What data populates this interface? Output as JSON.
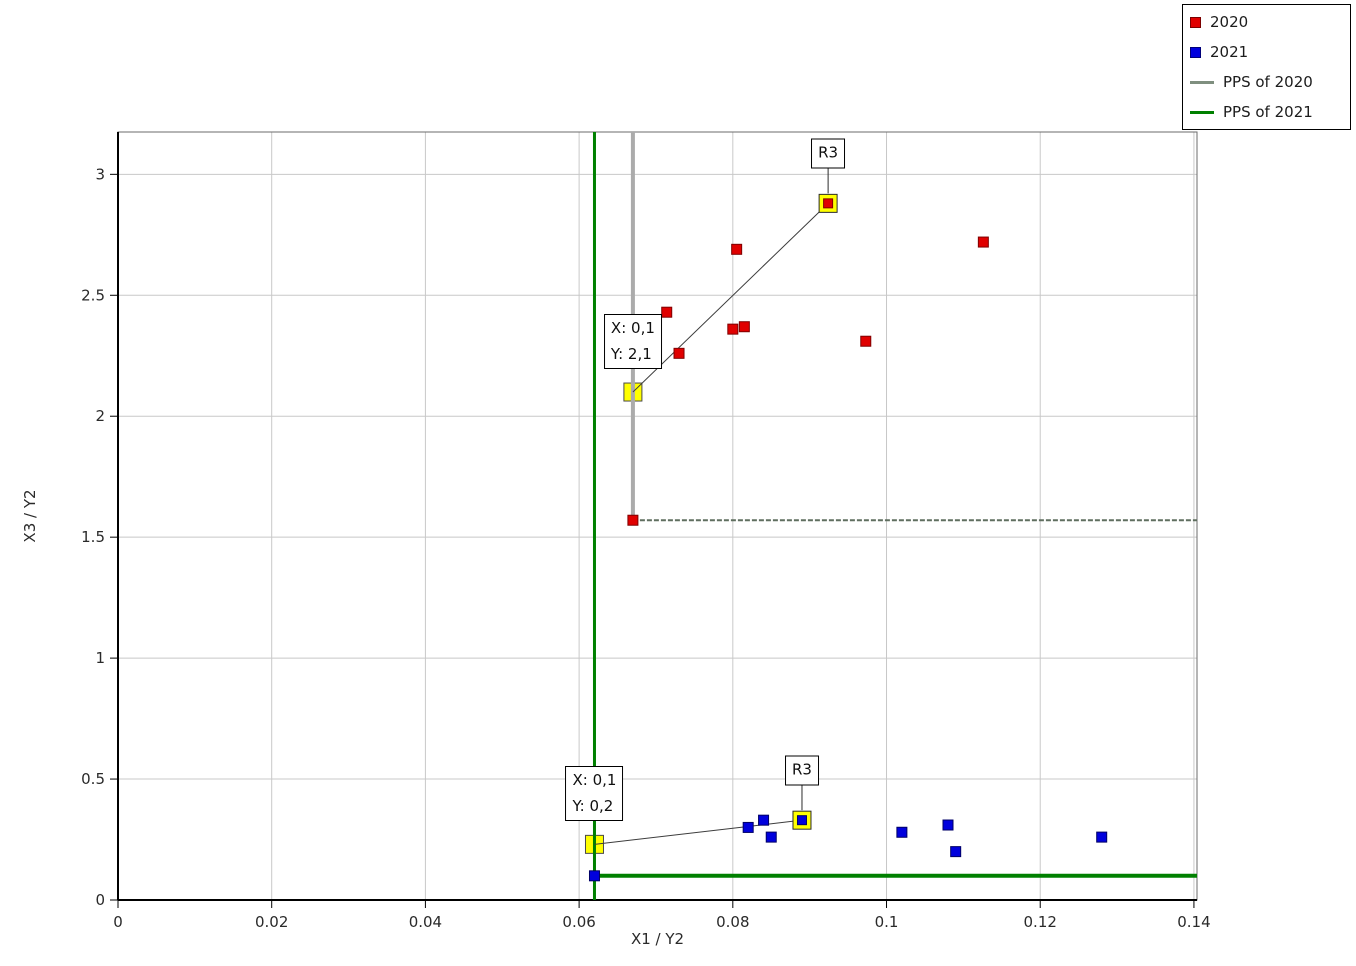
{
  "page": {
    "background": "#ffffff",
    "text_color": "#2a2a2a"
  },
  "legend": {
    "position": "top-right",
    "items": [
      {
        "label": "2020",
        "marker": "square",
        "color": "#e00000"
      },
      {
        "label": "2021",
        "marker": "square",
        "color": "#0000dd"
      },
      {
        "label": "PPS of 2020",
        "marker": "line",
        "color": "#7f8f7f"
      },
      {
        "label": "PPS of 2021",
        "marker": "line",
        "color": "#008000"
      }
    ]
  },
  "chart_data": {
    "type": "scatter",
    "title": "",
    "xlabel": "X1 / Y2",
    "ylabel": "X3 / Y2",
    "xlim": [
      0,
      0.1404
    ],
    "ylim": [
      0,
      3.175
    ],
    "grid": true,
    "legend_position": "top-right",
    "highlight_color": "#ffff00",
    "x_ticks": [
      {
        "v": 0,
        "label": "0"
      },
      {
        "v": 0.02,
        "label": "0.02"
      },
      {
        "v": 0.04,
        "label": "0.04"
      },
      {
        "v": 0.06,
        "label": "0.06"
      },
      {
        "v": 0.08,
        "label": "0.08"
      },
      {
        "v": 0.1,
        "label": "0.1"
      },
      {
        "v": 0.12,
        "label": "0.12"
      },
      {
        "v": 0.14,
        "label": "0.14"
      }
    ],
    "y_ticks": [
      {
        "v": 0,
        "label": "0"
      },
      {
        "v": 0.5,
        "label": "0.5"
      },
      {
        "v": 1,
        "label": "1"
      },
      {
        "v": 1.5,
        "label": "1.5"
      },
      {
        "v": 2,
        "label": "2"
      },
      {
        "v": 2.5,
        "label": "2.5"
      },
      {
        "v": 3,
        "label": "3"
      }
    ],
    "series": [
      {
        "name": "2020",
        "color": "#e00000",
        "edge": "#7f0000",
        "points": [
          [
            0.067,
            1.57
          ],
          [
            0.0714,
            2.43
          ],
          [
            0.073,
            2.26
          ],
          [
            0.0805,
            2.69
          ],
          [
            0.08,
            2.36
          ],
          [
            0.0815,
            2.37
          ],
          [
            0.0924,
            2.88
          ],
          [
            0.0973,
            2.31
          ],
          [
            0.1126,
            2.72
          ]
        ]
      },
      {
        "name": "2021",
        "color": "#0000dd",
        "edge": "#000066",
        "points": [
          [
            0.062,
            0.1
          ],
          [
            0.082,
            0.3
          ],
          [
            0.084,
            0.33
          ],
          [
            0.085,
            0.26
          ],
          [
            0.089,
            0.33
          ],
          [
            0.102,
            0.28
          ],
          [
            0.108,
            0.31
          ],
          [
            0.109,
            0.2
          ],
          [
            0.128,
            0.26
          ]
        ]
      }
    ],
    "pps_lines": [
      {
        "name": "PPS of 2020",
        "color_vertical": "#ababab",
        "color_horizontal": "#5f6e5f",
        "vertical_x": 0.067,
        "corner_y": 1.57
      },
      {
        "name": "PPS of 2021",
        "color": "#008000",
        "vertical_x": 0.062,
        "horizontal_y": 0.1
      }
    ],
    "selections": [
      {
        "series": "2020",
        "x": 0.067,
        "y": 2.1,
        "style": "filled-yellow"
      },
      {
        "series": "2021",
        "x": 0.062,
        "y": 0.23,
        "style": "filled-yellow"
      },
      {
        "series": "2020",
        "x": 0.0924,
        "y": 2.88,
        "style": "yellow-ring",
        "label": "R3"
      },
      {
        "series": "2021",
        "x": 0.089,
        "y": 0.33,
        "style": "yellow-ring",
        "label": "R3"
      }
    ],
    "connectors": [
      {
        "x1": 0.067,
        "y1": 2.1,
        "x2": 0.0924,
        "y2": 2.88
      },
      {
        "x1": 0.062,
        "y1": 0.23,
        "x2": 0.089,
        "y2": 0.33
      }
    ],
    "annotations": [
      {
        "kind": "coords",
        "lines": [
          "X: 0,1",
          "Y: 2,1"
        ],
        "x": 0.067,
        "y": 2.1
      },
      {
        "kind": "coords",
        "lines": [
          "X: 0,1",
          "Y: 0,2"
        ],
        "x": 0.062,
        "y": 0.23
      },
      {
        "kind": "point-label",
        "lines": [
          "R3"
        ],
        "x": 0.0924,
        "y": 2.88
      },
      {
        "kind": "point-label",
        "lines": [
          "R3"
        ],
        "x": 0.089,
        "y": 0.33
      }
    ]
  }
}
